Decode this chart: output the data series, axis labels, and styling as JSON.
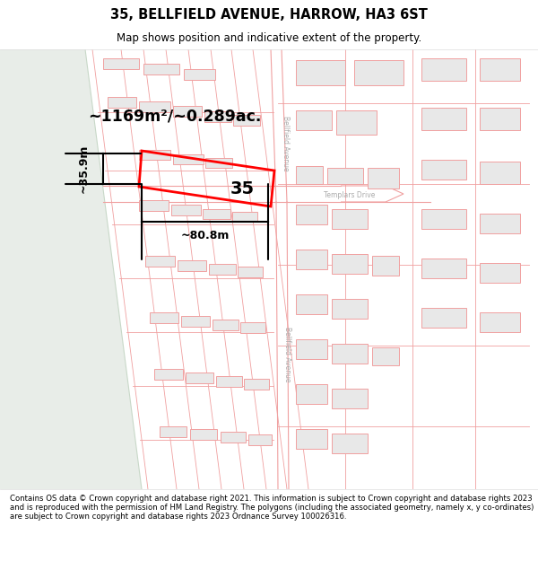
{
  "title": "35, BELLFIELD AVENUE, HARROW, HA3 6ST",
  "subtitle": "Map shows position and indicative extent of the property.",
  "footer": "Contains OS data © Crown copyright and database right 2021. This information is subject to Crown copyright and database rights 2023 and is reproduced with the permission of HM Land Registry. The polygons (including the associated geometry, namely x, y co-ordinates) are subject to Crown copyright and database rights 2023 Ordnance Survey 100026316.",
  "map_bg": "#ffffff",
  "left_bg": "#e8ede8",
  "road_line_color": "#f0a0a0",
  "highlight_color": "#ff0000",
  "building_fill": "#e8e8e8",
  "building_edge": "#f0a0a0",
  "label_35": "35",
  "area_label": "~1169m²/~0.289ac.",
  "width_label": "~80.8m",
  "height_label": "~35.9m"
}
